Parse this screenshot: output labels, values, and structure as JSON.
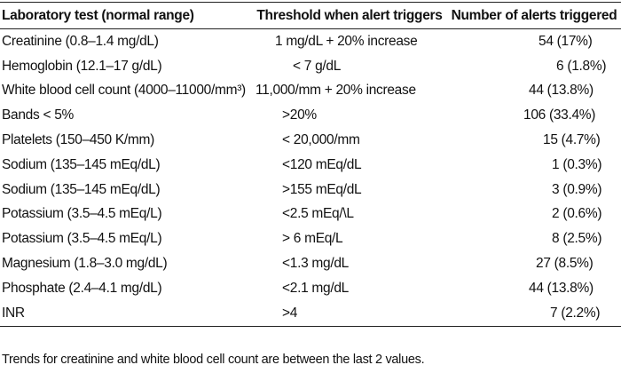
{
  "table": {
    "headers": [
      "Laboratory test (normal range)",
      "Threshold when alert triggers",
      "Number of alerts triggered"
    ],
    "rows": [
      {
        "test": "Creatinine (0.8–1.4 mg/dL)",
        "threshold": "1 mg/dL + 20% increase",
        "alerts": "54 (17%)"
      },
      {
        "test": "Hemoglobin (12.1–17 g/dL)",
        "threshold": "<  7 g/dL",
        "alerts": "6 (1.8%)"
      },
      {
        "test": "White blood cell count (4000–11000/mm³)",
        "threshold": "11,000/mm + 20% increase",
        "alerts": "44 (13.8%)"
      },
      {
        "test": "Bands < 5%",
        "threshold": ">20%",
        "alerts": "106 (33.4%)"
      },
      {
        "test": "Platelets (150–450 K/mm)",
        "threshold": "< 20,000/mm",
        "alerts": "15 (4.7%)"
      },
      {
        "test": "Sodium (135–145 mEq/dL)",
        "threshold": "<120 mEq/dL",
        "alerts": "1 (0.3%)"
      },
      {
        "test": "Sodium (135–145 mEq/dL)",
        "threshold": ">155 mEq/dL",
        "alerts": "3 (0.9%)"
      },
      {
        "test": "Potassium (3.5–4.5 mEq/L)",
        "threshold": "<2.5 mEq/\\L",
        "alerts": "2 (0.6%)"
      },
      {
        "test": "Potassium (3.5–4.5 mEq/L)",
        "threshold": ">  6 mEq/L",
        "alerts": "8 (2.5%)"
      },
      {
        "test": "Magnesium (1.8–3.0 mg/dL)",
        "threshold": "<1.3 mg/dL",
        "alerts": "27 (8.5%)"
      },
      {
        "test": "Phosphate (2.4–4.1 mg/dL)",
        "threshold": "<2.1 mg/dL",
        "alerts": "44 (13.8%)"
      },
      {
        "test": "INR",
        "threshold": ">4",
        "alerts": "7 (2.2%)"
      }
    ],
    "footnote": "Trends for creatinine and white blood cell count are between the last 2 values."
  }
}
